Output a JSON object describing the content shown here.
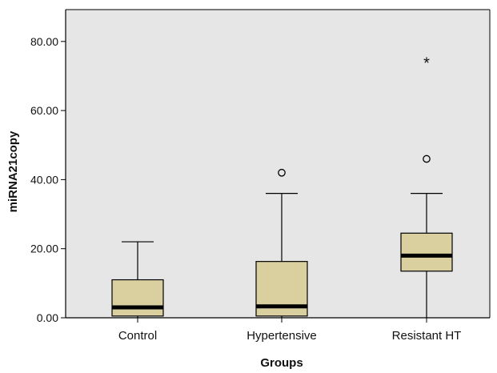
{
  "chart_data": {
    "type": "boxplot",
    "xlabel": "Groups",
    "ylabel": "miRNA21copy",
    "ylim": [
      0,
      90
    ],
    "yticks": [
      0,
      20,
      40,
      60,
      80
    ],
    "ytick_labels": [
      "0.00",
      "20.00",
      "40.00",
      "60.00",
      "80.00"
    ],
    "grid": false,
    "colors": {
      "plot_background": "#e6e6e6",
      "box_fill": "#d9cf9f",
      "median": "#000000",
      "outline": "#000000"
    },
    "categories": [
      "Control",
      "Hypertensive",
      "Resistant HT"
    ],
    "boxes": [
      {
        "category": "Control",
        "min": 0,
        "q1": 0.5,
        "median": 3,
        "q3": 11,
        "max": 22,
        "outliers": [],
        "extremes": []
      },
      {
        "category": "Hypertensive",
        "min": 0,
        "q1": 0.5,
        "median": 3.3,
        "q3": 16.3,
        "max": 36,
        "outliers": [
          42
        ],
        "extremes": []
      },
      {
        "category": "Resistant HT",
        "min": 0,
        "q1": 13.5,
        "median": 18,
        "q3": 24.5,
        "max": 36,
        "outliers": [
          46
        ],
        "extremes": [
          74
        ]
      }
    ]
  }
}
